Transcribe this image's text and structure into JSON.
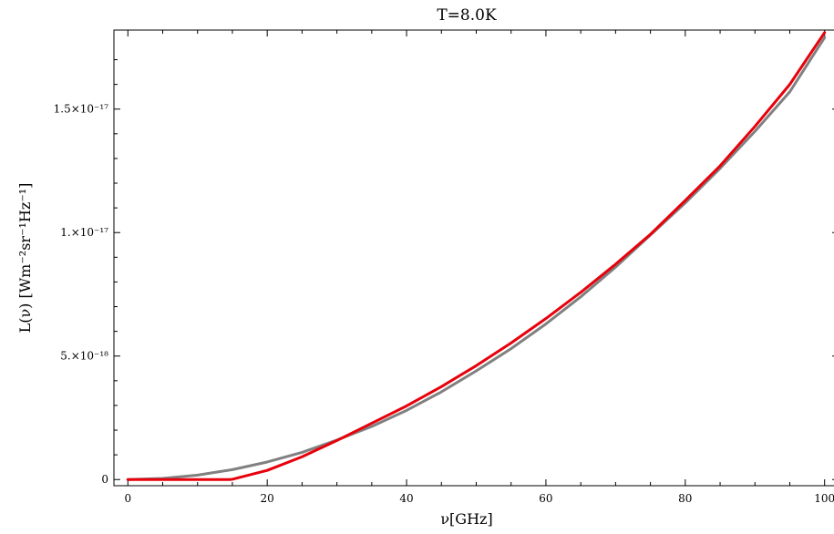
{
  "chart_data": {
    "type": "line",
    "title": "T=8.0K",
    "xlabel": "ν[GHz]",
    "ylabel": "L(ν) [Wm⁻²sr⁻¹Hz⁻¹]",
    "xlim": [
      -2,
      102
    ],
    "ylim": [
      -2.5e-19,
      1.82e-17
    ],
    "x_ticks": [
      {
        "value": 0,
        "label": "0"
      },
      {
        "value": 20,
        "label": "20"
      },
      {
        "value": 40,
        "label": "40"
      },
      {
        "value": 60,
        "label": "60"
      },
      {
        "value": 80,
        "label": "80"
      },
      {
        "value": 100,
        "label": "100"
      }
    ],
    "y_ticks": [
      {
        "value": 0,
        "label": "0"
      },
      {
        "value": 5e-18,
        "label": "5.×10⁻¹⁸"
      },
      {
        "value": 1e-17,
        "label": "1.×10⁻¹⁷"
      },
      {
        "value": 1.5e-17,
        "label": "1.5×10⁻¹⁷"
      }
    ],
    "grid": false,
    "series": [
      {
        "color": "#808080",
        "x": [
          0,
          5,
          10,
          15,
          20,
          25,
          30,
          35,
          40,
          45,
          50,
          55,
          60,
          65,
          70,
          75,
          80,
          85,
          90,
          95,
          100
        ],
        "y": [
          0,
          4.5e-20,
          1.8e-19,
          4e-19,
          7.1e-19,
          1.1e-18,
          1.6e-18,
          2.15e-18,
          2.8e-18,
          3.55e-18,
          4.4e-18,
          5.3e-18,
          6.3e-18,
          7.4e-18,
          8.6e-18,
          9.9e-18,
          1.12e-17,
          1.26e-17,
          1.41e-17,
          1.57e-17,
          1.79e-17
        ]
      },
      {
        "color": "#e8000b",
        "x": [
          0,
          14.6,
          15,
          20,
          25,
          30,
          35,
          40,
          45,
          50,
          55,
          60,
          65,
          70,
          75,
          80,
          85,
          90,
          95,
          100
        ],
        "y": [
          0,
          0,
          1e-20,
          3.7e-19,
          9.2e-19,
          1.58e-18,
          2.28e-18,
          2.98e-18,
          3.76e-18,
          4.61e-18,
          5.53e-18,
          6.52e-18,
          7.58e-18,
          8.72e-18,
          9.93e-18,
          1.13e-17,
          1.27e-17,
          1.43e-17,
          1.6e-17,
          1.81e-17
        ]
      }
    ]
  }
}
